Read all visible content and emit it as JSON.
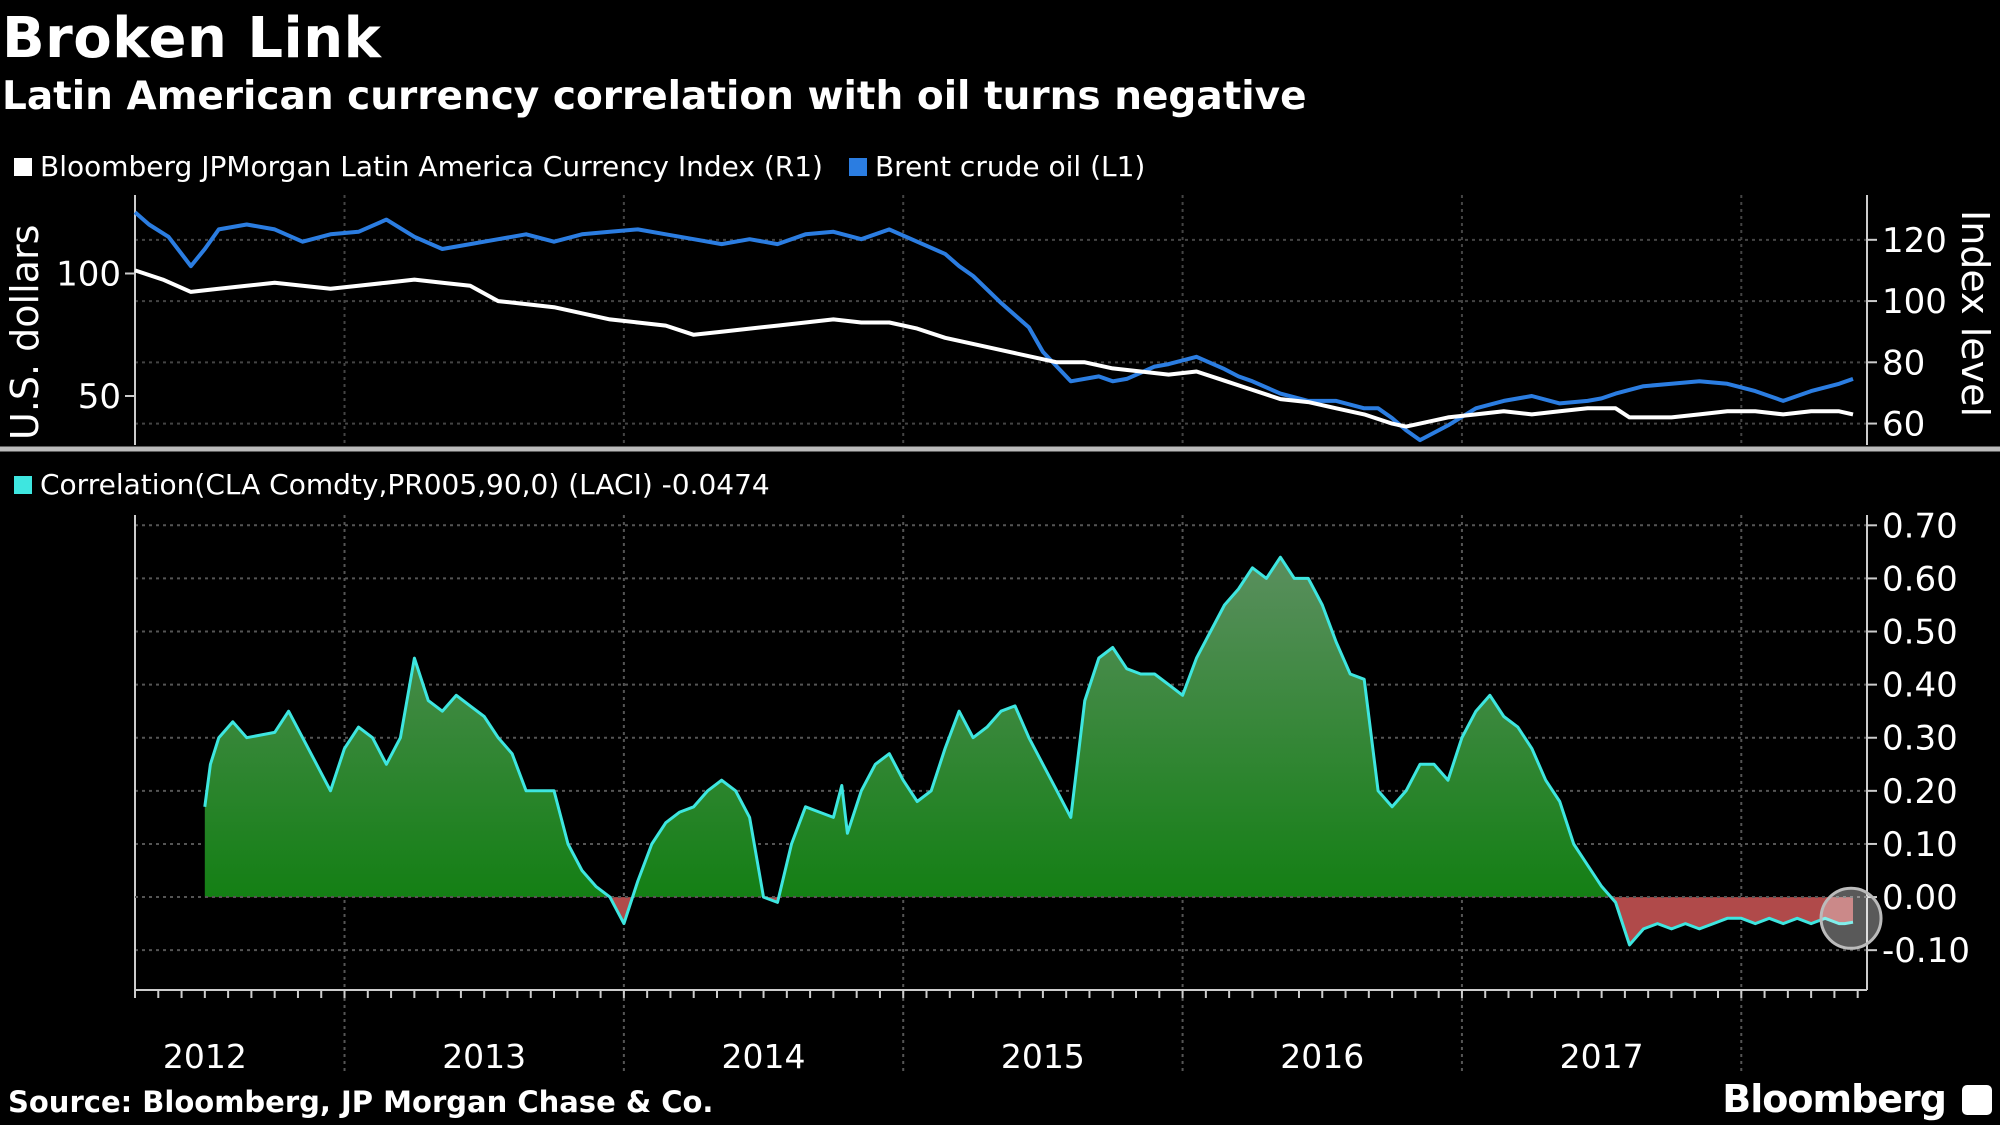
{
  "header": {
    "title": "Broken Link",
    "subtitle": "Latin American currency correlation with oil turns negative"
  },
  "footer": {
    "source": "Source: Bloomberg, JP Morgan Chase & Co.",
    "brand": "Bloomberg"
  },
  "colors": {
    "background": "#000000",
    "currency_line": "#ffffff",
    "oil_line": "#2b7de1",
    "correlation_line": "#3ee6e0",
    "area_positive_bottom": "#0a7a0a",
    "area_positive_top": "#4b8f52",
    "area_negative": "#b04a4a"
  },
  "chart_data": [
    {
      "type": "line",
      "legend": [
        {
          "label": "Bloomberg JPMorgan Latin America Currency Index (R1)",
          "color": "#ffffff"
        },
        {
          "label": "Brent crude oil (L1)",
          "color": "#2b7de1"
        }
      ],
      "ylabel_left": "U.S. dollars",
      "ylabel_right": "Index level",
      "yticks_left": [
        "100",
        "50"
      ],
      "yticks_left_values": [
        100,
        50
      ],
      "ylim_left": [
        30,
        130
      ],
      "yticks_right": [
        "120",
        "100",
        "80",
        "60"
      ],
      "yticks_right_values": [
        120,
        100,
        80,
        60
      ],
      "ylim_right": [
        53,
        133
      ],
      "x_range": [
        2011.5,
        2017.7
      ],
      "series": [
        {
          "name": "Brent crude oil (L1)",
          "axis": "left",
          "x": [
            2011.5,
            2011.55,
            2011.62,
            2011.7,
            2011.75,
            2011.8,
            2011.9,
            2012.0,
            2012.1,
            2012.2,
            2012.3,
            2012.4,
            2012.5,
            2012.6,
            2012.7,
            2012.8,
            2012.9,
            2013.0,
            2013.1,
            2013.2,
            2013.3,
            2013.4,
            2013.5,
            2013.6,
            2013.7,
            2013.8,
            2013.9,
            2014.0,
            2014.1,
            2014.2,
            2014.3,
            2014.4,
            2014.45,
            2014.5,
            2014.6,
            2014.7,
            2014.75,
            2014.8,
            2014.85,
            2014.95,
            2015.0,
            2015.05,
            2015.15,
            2015.2,
            2015.3,
            2015.4,
            2015.45,
            2015.5,
            2015.6,
            2015.7,
            2015.8,
            2015.9,
            2015.95,
            2016.0,
            2016.05,
            2016.1,
            2016.2,
            2016.3,
            2016.4,
            2016.5,
            2016.6,
            2016.7,
            2016.75,
            2016.8,
            2016.9,
            2017.0,
            2017.1,
            2017.2,
            2017.3,
            2017.4,
            2017.5,
            2017.6,
            2017.65
          ],
          "values": [
            125,
            120,
            115,
            103,
            110,
            118,
            120,
            118,
            113,
            116,
            117,
            122,
            115,
            110,
            112,
            114,
            116,
            113,
            116,
            117,
            118,
            116,
            114,
            112,
            114,
            112,
            116,
            117,
            114,
            118,
            113,
            108,
            103,
            99,
            88,
            78,
            68,
            62,
            56,
            58,
            56,
            57,
            62,
            63,
            66,
            61,
            58,
            56,
            51,
            48,
            48,
            45,
            45,
            41,
            36,
            32,
            38,
            45,
            48,
            50,
            47,
            48,
            49,
            51,
            54,
            55,
            56,
            55,
            52,
            48,
            52,
            55,
            57
          ]
        },
        {
          "name": "Bloomberg JPMorgan Latin America Currency Index (R1)",
          "axis": "right",
          "x": [
            2011.5,
            2011.6,
            2011.7,
            2011.8,
            2011.9,
            2012.0,
            2012.1,
            2012.2,
            2012.3,
            2012.4,
            2012.5,
            2012.6,
            2012.7,
            2012.8,
            2012.9,
            2013.0,
            2013.1,
            2013.2,
            2013.3,
            2013.4,
            2013.5,
            2013.6,
            2013.7,
            2013.8,
            2013.9,
            2014.0,
            2014.1,
            2014.2,
            2014.3,
            2014.4,
            2014.5,
            2014.6,
            2014.7,
            2014.8,
            2014.9,
            2015.0,
            2015.1,
            2015.2,
            2015.3,
            2015.4,
            2015.5,
            2015.6,
            2015.7,
            2015.8,
            2015.9,
            2016.0,
            2016.05,
            2016.1,
            2016.2,
            2016.3,
            2016.4,
            2016.5,
            2016.6,
            2016.7,
            2016.8,
            2016.85,
            2016.9,
            2017.0,
            2017.1,
            2017.2,
            2017.3,
            2017.4,
            2017.5,
            2017.6,
            2017.65
          ],
          "values": [
            110,
            107,
            103,
            104,
            105,
            106,
            105,
            104,
            105,
            106,
            107,
            106,
            105,
            100,
            99,
            98,
            96,
            94,
            93,
            92,
            89,
            90,
            91,
            92,
            93,
            94,
            93,
            93,
            91,
            88,
            86,
            84,
            82,
            80,
            80,
            78,
            77,
            76,
            77,
            74,
            71,
            68,
            67,
            65,
            63,
            60,
            59,
            60,
            62,
            63,
            64,
            63,
            64,
            65,
            65,
            62,
            62,
            62,
            63,
            64,
            64,
            63,
            64,
            64,
            63
          ]
        }
      ]
    },
    {
      "type": "area",
      "legend": [
        {
          "label": "Correlation(CLA Comdty,PR005,90,0) (LACI) -0.0474",
          "color": "#3ee6e0"
        }
      ],
      "yticks": [
        "0.70",
        "0.60",
        "0.50",
        "0.40",
        "0.30",
        "0.20",
        "0.10",
        "0.00",
        "-0.10"
      ],
      "yticks_values": [
        0.7,
        0.6,
        0.5,
        0.4,
        0.3,
        0.2,
        0.1,
        0.0,
        -0.1
      ],
      "ylim": [
        -0.175,
        0.71
      ],
      "x_range": [
        2011.5,
        2017.7
      ],
      "xlabels": [
        "2012",
        "2013",
        "2014",
        "2015",
        "2016",
        "2017"
      ],
      "xlabel_positions": [
        2011.75,
        2012.75,
        2013.75,
        2014.75,
        2015.75,
        2016.75
      ],
      "year_boundaries": [
        2012.25,
        2013.25,
        2014.25,
        2015.25,
        2016.25,
        2017.25
      ],
      "series": [
        {
          "name": "Correlation(CLA Comdty,PR005,90,0) (LACI)",
          "current_value": -0.0474,
          "x": [
            2011.75,
            2011.77,
            2011.8,
            2011.85,
            2011.9,
            2012.0,
            2012.05,
            2012.1,
            2012.15,
            2012.2,
            2012.25,
            2012.3,
            2012.35,
            2012.4,
            2012.45,
            2012.5,
            2012.55,
            2012.6,
            2012.65,
            2012.7,
            2012.75,
            2012.8,
            2012.85,
            2012.9,
            2013.0,
            2013.05,
            2013.1,
            2013.15,
            2013.2,
            2013.25,
            2013.3,
            2013.35,
            2013.4,
            2013.45,
            2013.5,
            2013.55,
            2013.6,
            2013.65,
            2013.7,
            2013.75,
            2013.8,
            2013.85,
            2013.9,
            2013.95,
            2014.0,
            2014.03,
            2014.05,
            2014.1,
            2014.15,
            2014.2,
            2014.25,
            2014.3,
            2014.35,
            2014.4,
            2014.45,
            2014.5,
            2014.55,
            2014.6,
            2014.65,
            2014.7,
            2014.75,
            2014.8,
            2014.85,
            2014.9,
            2014.95,
            2015.0,
            2015.05,
            2015.1,
            2015.15,
            2015.2,
            2015.25,
            2015.3,
            2015.35,
            2015.4,
            2015.45,
            2015.5,
            2015.55,
            2015.6,
            2015.65,
            2015.7,
            2015.75,
            2015.8,
            2015.85,
            2015.9,
            2015.95,
            2016.0,
            2016.05,
            2016.1,
            2016.15,
            2016.2,
            2016.25,
            2016.3,
            2016.35,
            2016.4,
            2016.45,
            2016.5,
            2016.55,
            2016.6,
            2016.65,
            2016.7,
            2016.75,
            2016.8,
            2016.85,
            2016.9,
            2016.95,
            2017.0,
            2017.05,
            2017.1,
            2017.15,
            2017.2,
            2017.25,
            2017.3,
            2017.35,
            2017.4,
            2017.45,
            2017.5,
            2017.55,
            2017.6,
            2017.62,
            2017.65
          ],
          "values": [
            0.17,
            0.25,
            0.3,
            0.33,
            0.3,
            0.31,
            0.35,
            0.3,
            0.25,
            0.2,
            0.28,
            0.32,
            0.3,
            0.25,
            0.3,
            0.45,
            0.37,
            0.35,
            0.38,
            0.36,
            0.34,
            0.3,
            0.27,
            0.2,
            0.2,
            0.1,
            0.05,
            0.02,
            0.0,
            -0.05,
            0.03,
            0.1,
            0.14,
            0.16,
            0.17,
            0.2,
            0.22,
            0.2,
            0.15,
            0.0,
            -0.01,
            0.1,
            0.17,
            0.16,
            0.15,
            0.21,
            0.12,
            0.2,
            0.25,
            0.27,
            0.22,
            0.18,
            0.2,
            0.28,
            0.35,
            0.3,
            0.32,
            0.35,
            0.36,
            0.3,
            0.25,
            0.2,
            0.15,
            0.37,
            0.45,
            0.47,
            0.43,
            0.42,
            0.42,
            0.4,
            0.38,
            0.45,
            0.5,
            0.55,
            0.58,
            0.62,
            0.6,
            0.64,
            0.6,
            0.6,
            0.55,
            0.48,
            0.42,
            0.41,
            0.2,
            0.17,
            0.2,
            0.25,
            0.25,
            0.22,
            0.3,
            0.35,
            0.38,
            0.34,
            0.32,
            0.28,
            0.22,
            0.18,
            0.1,
            0.06,
            0.02,
            -0.01,
            -0.09,
            -0.06,
            -0.05,
            -0.06,
            -0.05,
            -0.06,
            -0.05,
            -0.04,
            -0.04,
            -0.05,
            -0.04,
            -0.05,
            -0.04,
            -0.05,
            -0.04,
            -0.05,
            -0.05,
            -0.0474
          ]
        }
      ]
    }
  ]
}
